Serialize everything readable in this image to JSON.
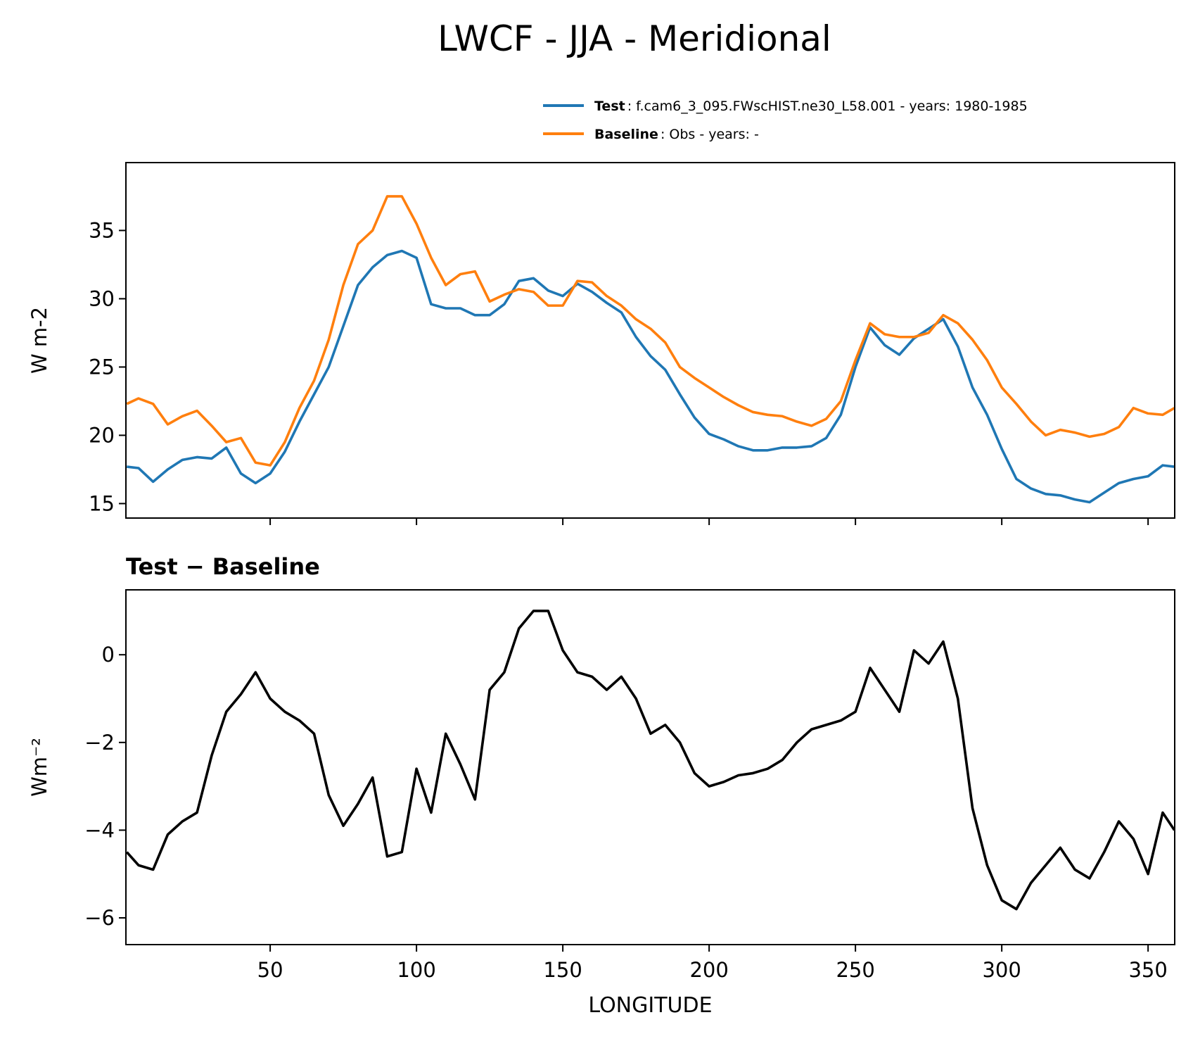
{
  "title": "LWCF - JJA - Meridional",
  "chart_data": [
    {
      "type": "line",
      "ylabel": "W m-2",
      "x": [
        1,
        5,
        10,
        15,
        20,
        25,
        30,
        35,
        40,
        45,
        50,
        55,
        60,
        65,
        70,
        75,
        80,
        85,
        90,
        95,
        100,
        105,
        110,
        115,
        120,
        125,
        130,
        135,
        140,
        145,
        150,
        155,
        160,
        165,
        170,
        175,
        180,
        185,
        190,
        195,
        200,
        205,
        210,
        215,
        220,
        225,
        230,
        235,
        240,
        245,
        250,
        255,
        260,
        265,
        270,
        275,
        280,
        285,
        290,
        295,
        300,
        305,
        310,
        315,
        320,
        325,
        330,
        335,
        340,
        345,
        350,
        355,
        359
      ],
      "series": [
        {
          "name": "Test",
          "description": ": f.cam6_3_095.FWscHIST.ne30_L58.001 - years: 1980-1985",
          "color": "#1f77b4",
          "values": [
            17.7,
            17.6,
            16.6,
            17.5,
            18.2,
            18.4,
            18.3,
            19.1,
            17.2,
            16.5,
            17.2,
            18.8,
            21.0,
            23.0,
            25.0,
            28.0,
            31.0,
            32.3,
            33.2,
            33.5,
            33.0,
            29.6,
            29.3,
            29.3,
            28.8,
            28.8,
            29.6,
            31.3,
            31.5,
            30.6,
            30.2,
            31.1,
            30.5,
            29.7,
            29.0,
            27.2,
            25.8,
            24.8,
            23.0,
            21.3,
            20.1,
            19.7,
            19.2,
            18.9,
            18.9,
            19.1,
            19.1,
            19.2,
            19.8,
            21.5,
            25.0,
            27.9,
            26.6,
            25.9,
            27.1,
            27.8,
            28.5,
            26.5,
            23.5,
            21.5,
            19.0,
            16.8,
            16.1,
            15.7,
            15.6,
            15.3,
            15.1,
            15.8,
            16.5,
            16.8,
            17.0,
            17.8,
            17.7
          ]
        },
        {
          "name": "Baseline",
          "description": ": Obs - years: -",
          "color": "#ff7f0e",
          "values": [
            22.3,
            22.7,
            22.3,
            20.8,
            21.4,
            21.8,
            20.7,
            19.5,
            19.8,
            18.0,
            17.8,
            19.5,
            22.0,
            24.0,
            27.0,
            31.0,
            34.0,
            35.0,
            37.5,
            37.5,
            35.5,
            33.0,
            31.0,
            31.8,
            32.0,
            29.8,
            30.3,
            30.7,
            30.5,
            29.5,
            29.5,
            31.3,
            31.2,
            30.2,
            29.5,
            28.5,
            27.8,
            26.8,
            25.0,
            24.2,
            23.5,
            22.8,
            22.2,
            21.7,
            21.5,
            21.4,
            21.0,
            20.7,
            21.2,
            22.5,
            25.5,
            28.2,
            27.4,
            27.2,
            27.2,
            27.5,
            28.8,
            28.2,
            27.0,
            25.5,
            23.5,
            22.3,
            21.0,
            20.0,
            20.4,
            20.2,
            19.9,
            20.1,
            20.6,
            22.0,
            21.6,
            21.5,
            22.0
          ]
        }
      ],
      "xlim": [
        0.7,
        359.1
      ],
      "xticks": [
        50,
        100,
        150,
        200,
        250,
        300,
        350
      ],
      "xticklabels": false,
      "ylim": [
        13.94,
        39.97
      ],
      "yticks": [
        15,
        20,
        25,
        30,
        35
      ],
      "legend": "upper right"
    },
    {
      "type": "line",
      "title": "Test − Baseline",
      "xlabel": "LONGITUDE",
      "ylabel": "Wm⁻²",
      "x": [
        1,
        5,
        10,
        15,
        20,
        25,
        30,
        35,
        40,
        45,
        50,
        55,
        60,
        65,
        70,
        75,
        80,
        85,
        90,
        95,
        100,
        105,
        110,
        115,
        120,
        125,
        130,
        135,
        140,
        145,
        150,
        155,
        160,
        165,
        170,
        175,
        180,
        185,
        190,
        195,
        200,
        205,
        210,
        215,
        220,
        225,
        230,
        235,
        240,
        245,
        250,
        255,
        260,
        265,
        270,
        275,
        280,
        285,
        290,
        295,
        300,
        305,
        310,
        315,
        320,
        325,
        330,
        335,
        340,
        345,
        350,
        355,
        359
      ],
      "color": "#000000",
      "values": [
        -4.5,
        -4.8,
        -4.9,
        -4.1,
        -3.8,
        -3.6,
        -2.3,
        -1.3,
        -0.9,
        -0.4,
        -1.0,
        -1.3,
        -1.5,
        -1.8,
        -3.2,
        -3.9,
        -3.4,
        -2.8,
        -4.6,
        -4.5,
        -2.6,
        -3.6,
        -1.8,
        -2.5,
        -3.3,
        -0.8,
        -0.4,
        0.6,
        1.0,
        1.0,
        0.1,
        -0.4,
        -0.5,
        -0.8,
        -0.5,
        -1.0,
        -1.8,
        -1.6,
        -2.0,
        -2.7,
        -3.0,
        -2.9,
        -2.75,
        -2.7,
        -2.6,
        -2.4,
        -2.0,
        -1.7,
        -1.6,
        -1.5,
        -1.3,
        -0.3,
        -0.8,
        -1.3,
        0.1,
        -0.2,
        0.3,
        -1.0,
        -3.5,
        -4.8,
        -5.6,
        -5.8,
        -5.2,
        -4.8,
        -4.4,
        -4.9,
        -5.1,
        -4.5,
        -3.8,
        -4.2,
        -5.0,
        -3.6,
        -4.0
      ],
      "xlim": [
        0.7,
        359.1
      ],
      "xticks": [
        50,
        100,
        150,
        200,
        250,
        300,
        350
      ],
      "ylim": [
        -6.61,
        1.48
      ],
      "yticks": [
        {
          "value": -6,
          "label": "−6"
        },
        {
          "value": -4,
          "label": "−4"
        },
        {
          "value": -2,
          "label": "−2"
        },
        0
      ]
    }
  ]
}
